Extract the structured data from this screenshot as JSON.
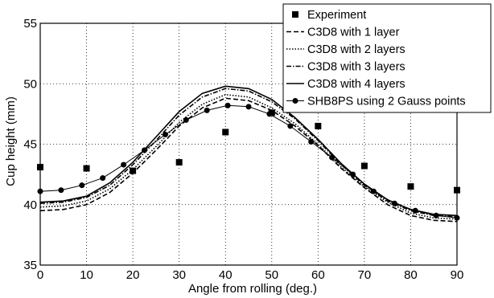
{
  "chart_data": {
    "type": "line",
    "title": "",
    "xlabel": "Angle from rolling (deg.)",
    "ylabel": "Cup height (mm)",
    "xlim": [
      0,
      90
    ],
    "ylim": [
      35,
      55
    ],
    "x_ticks": [
      0,
      10,
      20,
      30,
      40,
      50,
      60,
      70,
      80,
      90
    ],
    "y_ticks": [
      35,
      40,
      45,
      50,
      55
    ],
    "grid": true,
    "legend_position": "top-right",
    "series": [
      {
        "name": "Experiment",
        "style": "markers-square",
        "x": [
          0,
          10,
          20,
          30,
          40,
          50,
          60,
          70,
          80,
          90
        ],
        "y": [
          43.1,
          43.0,
          42.8,
          43.5,
          46.0,
          47.6,
          46.5,
          43.2,
          41.5,
          41.2
        ]
      },
      {
        "name": "C3D8 with 1 layer",
        "style": "dashed",
        "x": [
          0,
          5,
          10,
          15,
          20,
          25,
          30,
          35,
          40,
          45,
          50,
          55,
          60,
          65,
          70,
          75,
          80,
          85,
          90
        ],
        "y": [
          39.5,
          39.6,
          40.0,
          41.0,
          42.6,
          44.5,
          46.5,
          48.0,
          48.8,
          48.6,
          47.8,
          46.5,
          44.9,
          43.0,
          41.4,
          40.0,
          39.1,
          38.7,
          38.6
        ]
      },
      {
        "name": "C3D8 with 2 layers",
        "style": "dotted",
        "x": [
          0,
          5,
          10,
          15,
          20,
          25,
          30,
          35,
          40,
          45,
          50,
          55,
          60,
          65,
          70,
          75,
          80,
          85,
          90
        ],
        "y": [
          39.8,
          39.9,
          40.3,
          41.3,
          42.9,
          44.8,
          46.8,
          48.3,
          49.1,
          48.9,
          48.0,
          46.7,
          45.0,
          43.1,
          41.5,
          40.2,
          39.3,
          38.9,
          38.8
        ]
      },
      {
        "name": "C3D8 with 3 layers",
        "style": "dash-dot",
        "x": [
          0,
          5,
          10,
          15,
          20,
          25,
          30,
          35,
          40,
          45,
          50,
          55,
          60,
          65,
          70,
          75,
          80,
          85,
          90
        ],
        "y": [
          40.1,
          40.2,
          40.6,
          41.6,
          43.3,
          45.3,
          47.4,
          48.9,
          49.6,
          49.4,
          48.5,
          47.1,
          45.3,
          43.3,
          41.6,
          40.3,
          39.5,
          39.1,
          39.0
        ]
      },
      {
        "name": "C3D8 with 4 layers",
        "style": "solid",
        "x": [
          0,
          5,
          10,
          15,
          20,
          25,
          30,
          35,
          40,
          45,
          50,
          55,
          60,
          65,
          70,
          75,
          80,
          85,
          90
        ],
        "y": [
          40.2,
          40.3,
          40.7,
          41.8,
          43.5,
          45.6,
          47.7,
          49.2,
          49.8,
          49.6,
          48.7,
          47.2,
          45.4,
          43.4,
          41.7,
          40.4,
          39.6,
          39.2,
          39.1
        ]
      },
      {
        "name": "SHB8PS using 2 Gauss points",
        "style": "solid-circles",
        "x": [
          0,
          4.5,
          9,
          13.5,
          18,
          22.5,
          27,
          31.5,
          36,
          40.5,
          45,
          49.5,
          54,
          58.5,
          63,
          67.5,
          72,
          76.5,
          81,
          85.5,
          90
        ],
        "y": [
          41.1,
          41.2,
          41.6,
          42.2,
          43.3,
          44.5,
          45.8,
          47.0,
          47.8,
          48.2,
          48.1,
          47.5,
          46.5,
          45.2,
          43.9,
          42.5,
          41.1,
          40.1,
          39.5,
          39.1,
          38.9
        ]
      }
    ]
  }
}
